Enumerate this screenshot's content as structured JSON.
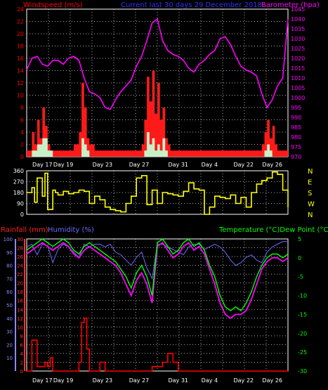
{
  "colors": {
    "background": "#000000",
    "grid": "#aaaaaa",
    "axis_frame": "#ffffff",
    "tick_text": "#ffffff",
    "wind_speed": "#ff0000",
    "wind_avg": "#ffffff",
    "gust_fill": "#ff1a1a",
    "avg_fill": "#c8f0c8",
    "barometer": "#ff00ff",
    "current_title": "#3030ff",
    "direction": "#ffff00",
    "rainfall": "#ff0000",
    "humidity": "#6b6bff",
    "temperature": "#00ff00",
    "dew_point": "#ff00ff",
    "rain_axis": "#ff3333",
    "humid_axis": "#8a8aff",
    "temp_axis": "#00ff00"
  },
  "chart_data": [
    {
      "panel": "wind-barometer",
      "type": "line",
      "title": "Current last 30 days 29 December 2018",
      "left_label": "Windspeed (m/s)",
      "right_label": "Barometer (hpa)",
      "y_left_ticks": [
        "0",
        "2",
        "4",
        "6",
        "8",
        "10",
        "12",
        "14",
        "16",
        "18",
        "20",
        "22",
        "24"
      ],
      "y_left_range": [
        0,
        24
      ],
      "y_right_ticks": [
        "970",
        "975",
        "980",
        "985",
        "990",
        "995",
        "1000",
        "1005",
        "1010",
        "1015",
        "1020",
        "1025",
        "1030",
        "1035",
        "1040",
        "1045"
      ],
      "y_right_range": [
        970,
        1045
      ],
      "x_ticks": [
        "Day 17",
        "Day 19",
        "Day 23",
        "Day 27",
        "Day 31",
        "Day 4",
        "Day 22",
        "Day 26"
      ],
      "x_domain": [
        0,
        100
      ],
      "series": [
        {
          "role": "barometer",
          "x": [
            0,
            2,
            4,
            6,
            8,
            10,
            12,
            14,
            16,
            18,
            20,
            22,
            24,
            26,
            28,
            30,
            32,
            34,
            36,
            38,
            40,
            42,
            44,
            46,
            48,
            50,
            52,
            54,
            56,
            58,
            60,
            62,
            64,
            66,
            68,
            70,
            72,
            74,
            76,
            78,
            80,
            82,
            84,
            86,
            88,
            90,
            92,
            94,
            96,
            98,
            100
          ],
          "y": [
            1014,
            1020,
            1021,
            1017,
            1016,
            1019,
            1019,
            1017,
            1020,
            1021,
            1019,
            1010,
            1003,
            1002,
            1000,
            995,
            994,
            999,
            1003,
            1006,
            1009,
            1016,
            1021,
            1029,
            1038,
            1040,
            1029,
            1024,
            1022,
            1021,
            1019,
            1015,
            1013,
            1017,
            1019,
            1022,
            1024,
            1030,
            1031,
            1027,
            1021,
            1016,
            1014,
            1013,
            1011,
            1002,
            995,
            999,
            1006,
            1010,
            1040
          ]
        },
        {
          "role": "gust",
          "x": [
            0,
            2,
            3,
            4,
            5,
            6,
            7,
            8,
            9,
            10,
            12,
            14,
            16,
            18,
            20,
            21,
            22,
            23,
            24,
            26,
            28,
            30,
            32,
            34,
            36,
            38,
            40,
            42,
            44,
            45,
            46,
            47,
            48,
            49,
            50,
            51,
            52,
            53,
            54,
            55,
            56,
            58,
            60,
            62,
            64,
            66,
            68,
            70,
            72,
            74,
            76,
            78,
            80,
            82,
            84,
            86,
            88,
            90,
            91,
            92,
            93,
            94,
            95,
            96,
            98,
            100
          ],
          "y": [
            1,
            4,
            2,
            6,
            3,
            8,
            5,
            2,
            1,
            1,
            1,
            1,
            1,
            2,
            4,
            12,
            8,
            3,
            2,
            1,
            1,
            1,
            1,
            1,
            1,
            1,
            1,
            1,
            2,
            6,
            13,
            9,
            14,
            7,
            12,
            6,
            8,
            3,
            2,
            1,
            1,
            1,
            1,
            1,
            1,
            1,
            1,
            1,
            1,
            1,
            1,
            1,
            1,
            1,
            1,
            1,
            1,
            2,
            4,
            6,
            3,
            5,
            2,
            1,
            1,
            1
          ]
        },
        {
          "role": "average",
          "x": [
            0,
            2,
            4,
            6,
            8,
            10,
            20,
            21,
            22,
            23,
            24,
            44,
            45,
            46,
            47,
            48,
            49,
            50,
            51,
            52,
            53,
            54,
            56,
            90,
            91,
            92,
            93,
            94,
            96,
            100
          ],
          "y": [
            0,
            1,
            2,
            3,
            1,
            0,
            0,
            3,
            2,
            1,
            0,
            0,
            1,
            4,
            2,
            3,
            1,
            2,
            1,
            3,
            1,
            0,
            0,
            0,
            1,
            2,
            1,
            0,
            0,
            0
          ]
        }
      ]
    },
    {
      "panel": "wind-direction",
      "type": "line",
      "y_left_ticks": [
        "0",
        "90",
        "180",
        "270",
        "360"
      ],
      "y_range": [
        0,
        360
      ],
      "compass": [
        "N",
        "W",
        "S",
        "E",
        "N"
      ],
      "x_domain": [
        0,
        100
      ],
      "series": [
        {
          "role": "direction",
          "x": [
            0,
            2,
            3,
            4,
            6,
            7,
            8,
            10,
            11,
            12,
            14,
            16,
            18,
            20,
            22,
            24,
            26,
            28,
            30,
            32,
            34,
            36,
            38,
            40,
            42,
            44,
            46,
            48,
            50,
            52,
            54,
            56,
            58,
            60,
            62,
            64,
            66,
            68,
            70,
            72,
            74,
            76,
            78,
            80,
            82,
            84,
            86,
            88,
            90,
            92,
            94,
            96,
            98,
            100
          ],
          "y": [
            180,
            220,
            100,
            300,
            150,
            340,
            40,
            200,
            180,
            160,
            190,
            170,
            180,
            200,
            190,
            90,
            150,
            120,
            60,
            40,
            30,
            20,
            90,
            150,
            300,
            320,
            80,
            200,
            90,
            180,
            170,
            160,
            150,
            190,
            260,
            210,
            200,
            0,
            60,
            150,
            140,
            130,
            160,
            90,
            140,
            60,
            180,
            250,
            280,
            300,
            350,
            330,
            200,
            60
          ]
        }
      ]
    },
    {
      "panel": "rain-humidity-temperature",
      "type": "line",
      "left_label_rain": "Rainfall (mm)",
      "left_label_humidity": "Humidity (%)",
      "right_label": "Temperature (°C)Dew Point (°C)",
      "y_rain_ticks": [
        "0",
        "2",
        "4",
        "6",
        "8",
        "10",
        "12",
        "14",
        "16",
        "18",
        "20",
        "22",
        "24",
        "26",
        "28",
        "30"
      ],
      "y_rain_range": [
        0,
        30
      ],
      "y_humidity_ticks": [
        "10",
        "20",
        "30",
        "40",
        "50",
        "60",
        "70",
        "80",
        "90",
        "100"
      ],
      "y_humidity_range": [
        0,
        100
      ],
      "y_temp_ticks": [
        "-30",
        "-25",
        "-20",
        "-15",
        "-10",
        "-5",
        "0",
        "5"
      ],
      "y_temp_range": [
        -30,
        5
      ],
      "x_ticks": [
        "Day 17",
        "Day 19",
        "Day 23",
        "Day 27",
        "Day 31",
        "Day 4",
        "Day 22",
        "Day 26"
      ],
      "x_domain": [
        0,
        100
      ],
      "series": [
        {
          "role": "humidity",
          "x": [
            0,
            2,
            4,
            6,
            8,
            10,
            12,
            14,
            16,
            18,
            20,
            22,
            24,
            26,
            28,
            30,
            32,
            34,
            36,
            38,
            40,
            42,
            44,
            46,
            48,
            50,
            52,
            54,
            56,
            58,
            60,
            62,
            64,
            66,
            68,
            70,
            72,
            74,
            76,
            78,
            80,
            82,
            84,
            86,
            88,
            90,
            92,
            94,
            96,
            98,
            100
          ],
          "y": [
            94,
            96,
            88,
            96,
            95,
            82,
            92,
            96,
            94,
            90,
            86,
            96,
            94,
            96,
            96,
            94,
            96,
            90,
            88,
            84,
            80,
            86,
            90,
            78,
            70,
            96,
            96,
            94,
            92,
            90,
            88,
            94,
            96,
            96,
            92,
            94,
            96,
            94,
            90,
            84,
            80,
            82,
            86,
            88,
            84,
            82,
            90,
            94,
            96,
            98,
            98
          ]
        },
        {
          "role": "temperature",
          "x": [
            0,
            2,
            4,
            6,
            8,
            10,
            12,
            14,
            16,
            18,
            20,
            22,
            24,
            26,
            28,
            30,
            32,
            34,
            36,
            38,
            40,
            42,
            44,
            46,
            48,
            50,
            52,
            54,
            56,
            58,
            60,
            62,
            64,
            66,
            68,
            70,
            72,
            74,
            76,
            78,
            80,
            82,
            84,
            86,
            88,
            90,
            92,
            94,
            96,
            98,
            100
          ],
          "y": [
            2,
            3,
            4,
            5,
            4,
            3,
            4,
            5,
            4,
            2,
            1,
            3,
            4,
            3,
            2,
            1,
            0,
            -1,
            -3,
            -5,
            -8,
            -4,
            -2,
            -5,
            -10,
            4,
            5,
            3,
            1,
            2,
            4,
            5,
            3,
            4,
            2,
            -2,
            -5,
            -10,
            -13,
            -14,
            -13,
            -14,
            -12,
            -9,
            -5,
            -2,
            0,
            1,
            1,
            0,
            1
          ]
        },
        {
          "role": "dew_point",
          "x": [
            0,
            2,
            4,
            6,
            8,
            10,
            12,
            14,
            16,
            18,
            20,
            22,
            24,
            26,
            28,
            30,
            32,
            34,
            36,
            38,
            40,
            42,
            44,
            46,
            48,
            50,
            52,
            54,
            56,
            58,
            60,
            62,
            64,
            66,
            68,
            70,
            72,
            74,
            76,
            78,
            80,
            82,
            84,
            86,
            88,
            90,
            92,
            94,
            96,
            98,
            100
          ],
          "y": [
            1,
            2,
            3,
            4,
            3,
            2,
            3,
            4,
            3,
            1,
            0,
            2,
            3,
            2,
            1,
            0,
            -1,
            -2,
            -4,
            -7,
            -10,
            -6,
            -4,
            -7,
            -12,
            3,
            4,
            2,
            0,
            1,
            3,
            4,
            2,
            3,
            1,
            -3,
            -7,
            -12,
            -15,
            -16,
            -15,
            -15,
            -14,
            -11,
            -7,
            -3,
            -1,
            0,
            0,
            -1,
            0
          ]
        },
        {
          "role": "rainfall",
          "x": [
            0,
            2,
            3,
            4,
            5,
            6,
            7,
            8,
            9,
            10,
            12,
            14,
            16,
            18,
            20,
            21,
            22,
            23,
            24,
            26,
            28,
            30,
            32,
            34,
            36,
            38,
            40,
            42,
            44,
            46,
            48,
            50,
            52,
            54,
            56,
            58,
            60,
            62,
            64,
            66,
            68,
            70,
            72,
            74,
            76,
            78,
            80,
            82,
            84,
            86,
            88,
            90,
            92,
            94,
            96,
            98,
            100
          ],
          "y": [
            0,
            7,
            7,
            1,
            1,
            1,
            2,
            1,
            3,
            0,
            0,
            0,
            0,
            0,
            2,
            11,
            12,
            5,
            0,
            0,
            2,
            0,
            0,
            0,
            0,
            0,
            0,
            0,
            0,
            0,
            1,
            1,
            2,
            4,
            2,
            0,
            0,
            0,
            0,
            0,
            0,
            0,
            0,
            0,
            0,
            0,
            0,
            0,
            0,
            0,
            0,
            0,
            0,
            0,
            0,
            0,
            0
          ]
        }
      ]
    }
  ]
}
